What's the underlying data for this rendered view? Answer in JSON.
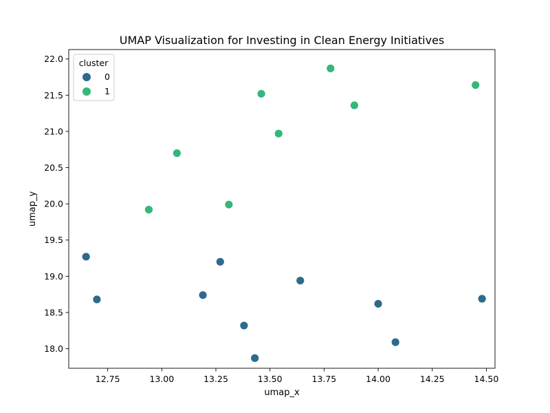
{
  "chart_data": {
    "type": "scatter",
    "title": "UMAP Visualization for Investing in Clean Energy Initiatives",
    "xlabel": "umap_x",
    "ylabel": "umap_y",
    "xlim": [
      12.57,
      14.54
    ],
    "ylim": [
      17.73,
      22.13
    ],
    "xticks": [
      "12.75",
      "13.00",
      "13.25",
      "13.50",
      "13.75",
      "14.00",
      "14.25",
      "14.50"
    ],
    "yticks": [
      "18.0",
      "18.5",
      "19.0",
      "19.5",
      "20.0",
      "20.5",
      "21.0",
      "21.5",
      "22.0"
    ],
    "grid": false,
    "legend": {
      "title": "cluster",
      "placement": "top-left"
    },
    "series": [
      {
        "name": "0",
        "color": "#2e6a8e",
        "points": [
          {
            "x": 12.65,
            "y": 19.27
          },
          {
            "x": 12.7,
            "y": 18.68
          },
          {
            "x": 13.19,
            "y": 18.74
          },
          {
            "x": 13.27,
            "y": 19.2
          },
          {
            "x": 13.38,
            "y": 18.32
          },
          {
            "x": 13.43,
            "y": 17.87
          },
          {
            "x": 13.64,
            "y": 18.94
          },
          {
            "x": 14.0,
            "y": 18.62
          },
          {
            "x": 14.08,
            "y": 18.09
          },
          {
            "x": 14.48,
            "y": 18.69
          }
        ]
      },
      {
        "name": "1",
        "color": "#35b779",
        "points": [
          {
            "x": 12.94,
            "y": 19.92
          },
          {
            "x": 13.07,
            "y": 20.7
          },
          {
            "x": 13.31,
            "y": 19.99
          },
          {
            "x": 13.46,
            "y": 21.52
          },
          {
            "x": 13.54,
            "y": 20.97
          },
          {
            "x": 13.78,
            "y": 21.87
          },
          {
            "x": 13.89,
            "y": 21.36
          },
          {
            "x": 14.45,
            "y": 21.64
          }
        ]
      }
    ]
  }
}
